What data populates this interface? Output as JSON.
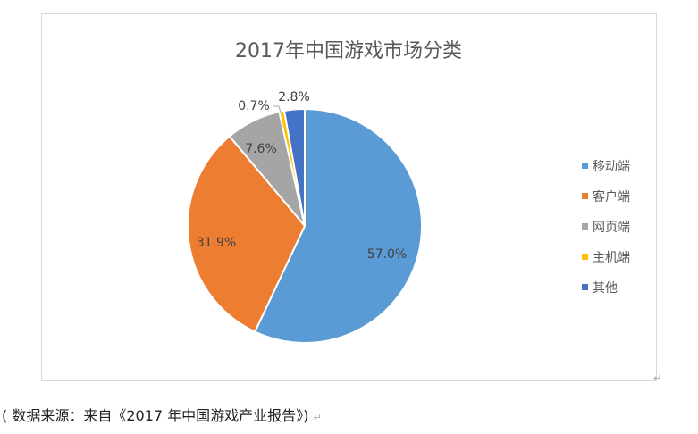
{
  "chart_data": {
    "type": "pie",
    "title": "2017年中国游戏市场分类",
    "categories": [
      "移动端",
      "客户端",
      "网页端",
      "主机端",
      "其他"
    ],
    "values": [
      57.0,
      31.9,
      7.6,
      0.7,
      2.8
    ],
    "data_labels": [
      "57.0%",
      "31.9%",
      "7.6%",
      "0.7%",
      "2.8%"
    ],
    "colors": [
      "#5B9BD5",
      "#ED7D31",
      "#A5A5A5",
      "#FFC000",
      "#4472C4"
    ],
    "start_angle": "12 o'clock",
    "direction": "clockwise",
    "legend_position": "right"
  },
  "caption": "( 数据来源：来自《2017 年中国游戏产业报告》)",
  "paragraph_mark": "↵"
}
